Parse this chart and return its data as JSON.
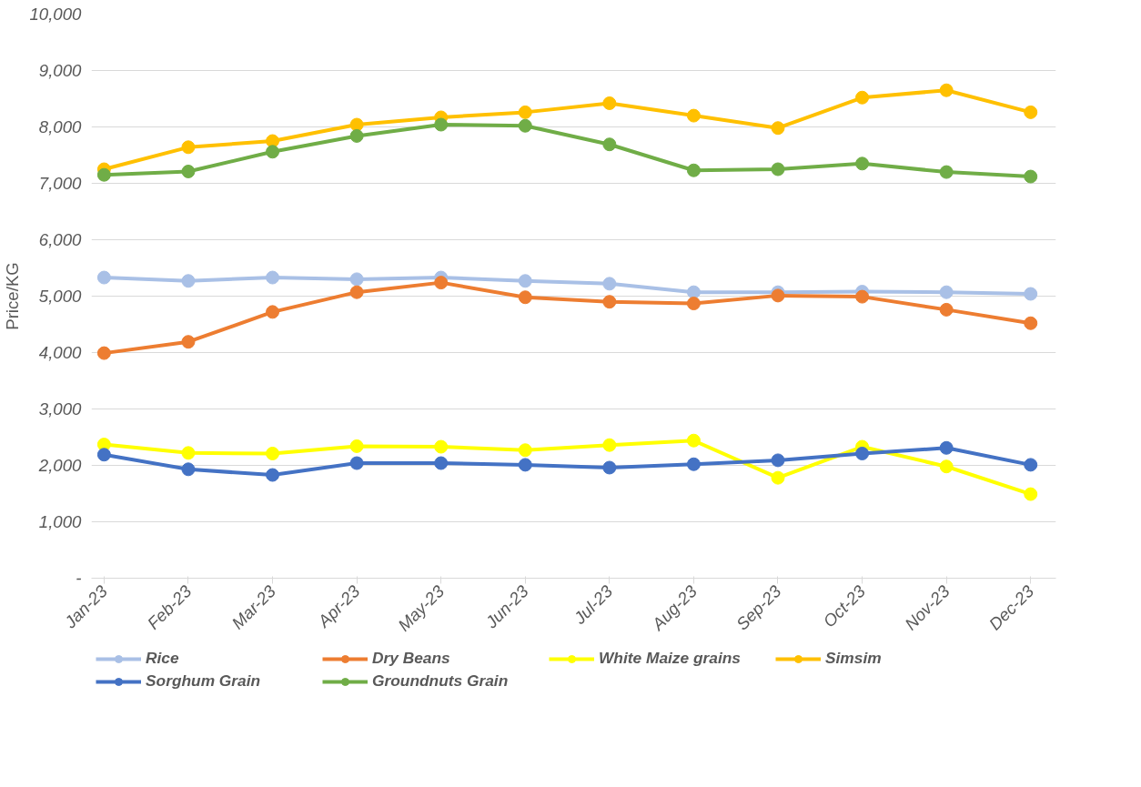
{
  "chart_data": {
    "type": "line",
    "ylabel": "Price/KG",
    "categories": [
      "Jan-23",
      "Feb-23",
      "Mar-23",
      "Apr-23",
      "May-23",
      "Jun-23",
      "Jul-23",
      "Aug-23",
      "Sep-23",
      "Oct-23",
      "Nov-23",
      "Dec-23"
    ],
    "series": [
      {
        "name": "Rice",
        "color": "#a9c0e6",
        "values": [
          5330,
          5270,
          5330,
          5300,
          5330,
          5270,
          5220,
          5070,
          5070,
          5080,
          5070,
          5040
        ]
      },
      {
        "name": "Dry Beans",
        "color": "#ed7d31",
        "values": [
          3990,
          4190,
          4720,
          5070,
          5240,
          4980,
          4900,
          4870,
          5010,
          4990,
          4760,
          4520
        ]
      },
      {
        "name": "White Maize grains",
        "color": "#ffff00",
        "values": [
          2370,
          2220,
          2210,
          2340,
          2330,
          2270,
          2360,
          2440,
          1780,
          2330,
          1980,
          1490
        ]
      },
      {
        "name": "Simsim",
        "color": "#ffc000",
        "values": [
          7250,
          7640,
          7750,
          8040,
          8170,
          8260,
          8420,
          8200,
          7980,
          8520,
          8650,
          8260
        ]
      },
      {
        "name": "Sorghum Grain",
        "color": "#4472c4",
        "values": [
          2190,
          1930,
          1830,
          2040,
          2040,
          2010,
          1960,
          2020,
          2090,
          2210,
          2310,
          2010
        ]
      },
      {
        "name": "Groundnuts Grain",
        "color": "#70ad47",
        "values": [
          7150,
          7210,
          7560,
          7840,
          8040,
          8020,
          7690,
          7230,
          7250,
          7350,
          7200,
          7120
        ]
      }
    ],
    "ylim": [
      0,
      10000
    ],
    "yticks": [
      {
        "value": 0,
        "label": "-"
      },
      {
        "value": 1000,
        "label": "1,000"
      },
      {
        "value": 2000,
        "label": "2,000"
      },
      {
        "value": 3000,
        "label": "3,000"
      },
      {
        "value": 4000,
        "label": "4,000"
      },
      {
        "value": 5000,
        "label": "5,000"
      },
      {
        "value": 6000,
        "label": "6,000"
      },
      {
        "value": 7000,
        "label": "7,000"
      },
      {
        "value": 8000,
        "label": "8,000"
      },
      {
        "value": 9000,
        "label": "9,000"
      },
      {
        "value": 10000,
        "label": "10,000"
      }
    ],
    "grid": "y",
    "legend": "bottom",
    "marker": "circle",
    "line_style": "solid"
  }
}
